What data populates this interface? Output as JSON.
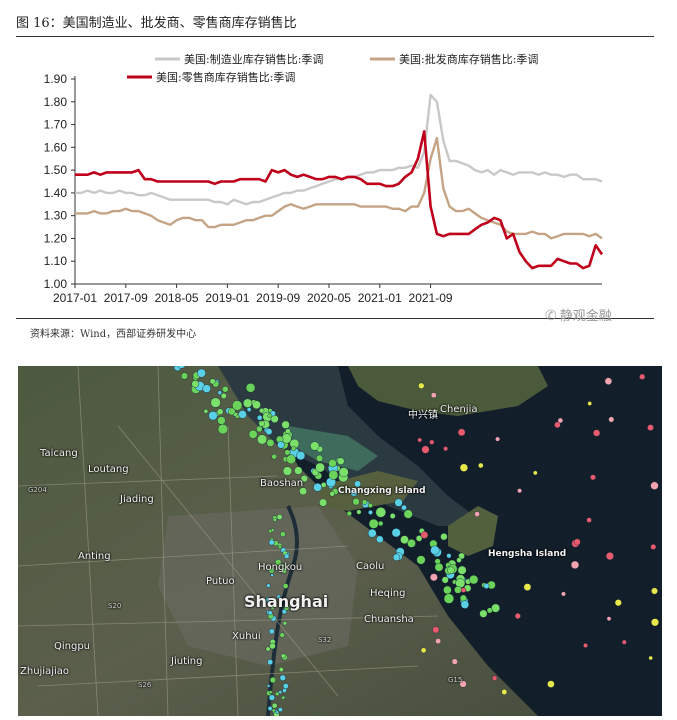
{
  "figure": {
    "title": "图 16：美国制造业、批发商、零售商库存销售比",
    "source": "资料来源：Wind，西部证券研发中心",
    "watermark": "静观金融",
    "watermark_icon": "wechat-icon"
  },
  "chart_data": {
    "type": "line",
    "title": "",
    "ylim": [
      1.0,
      1.9
    ],
    "yticks": [
      "1.90",
      "1.80",
      "1.70",
      "1.60",
      "1.50",
      "1.40",
      "1.30",
      "1.20",
      "1.10",
      "1.00"
    ],
    "xticks": [
      "2017-01",
      "2017-09",
      "2018-05",
      "2019-01",
      "2019-09",
      "2020-05",
      "2021-01",
      "2021-09"
    ],
    "x_start": "2017-01",
    "x_step": "month",
    "legend_position": "top",
    "series": [
      {
        "name": "美国:制造业库存销售比:季调",
        "color": "#c8c8c8",
        "values": [
          1.4,
          1.4,
          1.41,
          1.4,
          1.41,
          1.4,
          1.4,
          1.41,
          1.4,
          1.4,
          1.39,
          1.39,
          1.4,
          1.39,
          1.38,
          1.37,
          1.37,
          1.37,
          1.37,
          1.37,
          1.37,
          1.37,
          1.36,
          1.36,
          1.35,
          1.37,
          1.36,
          1.35,
          1.36,
          1.36,
          1.37,
          1.38,
          1.39,
          1.4,
          1.4,
          1.41,
          1.41,
          1.42,
          1.43,
          1.44,
          1.45,
          1.46,
          1.46,
          1.47,
          1.47,
          1.48,
          1.49,
          1.49,
          1.5,
          1.5,
          1.5,
          1.51,
          1.51,
          1.52,
          1.51,
          1.58,
          1.83,
          1.8,
          1.63,
          1.54,
          1.54,
          1.53,
          1.52,
          1.5,
          1.49,
          1.5,
          1.48,
          1.5,
          1.49,
          1.48,
          1.49,
          1.49,
          1.49,
          1.48,
          1.49,
          1.48,
          1.48,
          1.47,
          1.48,
          1.48,
          1.46,
          1.46,
          1.46,
          1.45
        ]
      },
      {
        "name": "美国:批发商库存销售比:季调",
        "color": "#c4a484",
        "values": [
          1.31,
          1.31,
          1.31,
          1.32,
          1.31,
          1.31,
          1.32,
          1.32,
          1.33,
          1.32,
          1.32,
          1.31,
          1.3,
          1.28,
          1.27,
          1.26,
          1.28,
          1.29,
          1.29,
          1.28,
          1.28,
          1.25,
          1.25,
          1.26,
          1.26,
          1.26,
          1.27,
          1.28,
          1.28,
          1.29,
          1.3,
          1.3,
          1.32,
          1.34,
          1.35,
          1.34,
          1.33,
          1.34,
          1.35,
          1.35,
          1.35,
          1.35,
          1.35,
          1.35,
          1.35,
          1.34,
          1.34,
          1.34,
          1.34,
          1.34,
          1.33,
          1.33,
          1.32,
          1.34,
          1.34,
          1.4,
          1.55,
          1.64,
          1.42,
          1.34,
          1.32,
          1.32,
          1.33,
          1.31,
          1.29,
          1.28,
          1.27,
          1.26,
          1.23,
          1.22,
          1.22,
          1.22,
          1.23,
          1.22,
          1.22,
          1.2,
          1.21,
          1.22,
          1.22,
          1.22,
          1.22,
          1.21,
          1.22,
          1.2
        ]
      },
      {
        "name": "美国:零售商库存销售比:季调",
        "color": "#c0001a",
        "values": [
          1.48,
          1.48,
          1.48,
          1.49,
          1.48,
          1.49,
          1.49,
          1.49,
          1.49,
          1.49,
          1.5,
          1.46,
          1.46,
          1.45,
          1.45,
          1.45,
          1.45,
          1.45,
          1.45,
          1.45,
          1.45,
          1.45,
          1.44,
          1.45,
          1.45,
          1.45,
          1.46,
          1.46,
          1.46,
          1.46,
          1.45,
          1.5,
          1.49,
          1.5,
          1.48,
          1.47,
          1.48,
          1.47,
          1.46,
          1.46,
          1.47,
          1.47,
          1.46,
          1.47,
          1.47,
          1.46,
          1.44,
          1.44,
          1.44,
          1.43,
          1.43,
          1.44,
          1.47,
          1.49,
          1.55,
          1.67,
          1.34,
          1.22,
          1.21,
          1.22,
          1.22,
          1.22,
          1.22,
          1.24,
          1.26,
          1.27,
          1.29,
          1.28,
          1.2,
          1.22,
          1.14,
          1.1,
          1.07,
          1.08,
          1.08,
          1.08,
          1.11,
          1.1,
          1.09,
          1.09,
          1.07,
          1.08,
          1.17,
          1.13
        ]
      }
    ]
  },
  "map": {
    "labels": {
      "shanghai": "Shanghai",
      "taicang": "Taicang",
      "jiading": "Jiading",
      "baoshan": "Baoshan",
      "putuo": "Putuo",
      "hongkou": "Hongkou",
      "xuhui": "Xuhui",
      "qingpu": "Qingpu",
      "jiuting": "Jiuting",
      "anting": "Anting",
      "loutang": "Loutang",
      "chuansha": "Chuansha",
      "heqing": "Heqing",
      "caolu": "Caolu",
      "zhujiajiao": "Zhujiajiao",
      "chenjia": "Chenjia",
      "zhongxing": "中兴镇",
      "changxing_island": "Changxing Island",
      "hengsha_island": "Hengsha Island",
      "road_g204": "G204",
      "road_s20": "S20",
      "road_s26": "S26",
      "road_s32": "S32",
      "road_g15": "G15"
    }
  }
}
